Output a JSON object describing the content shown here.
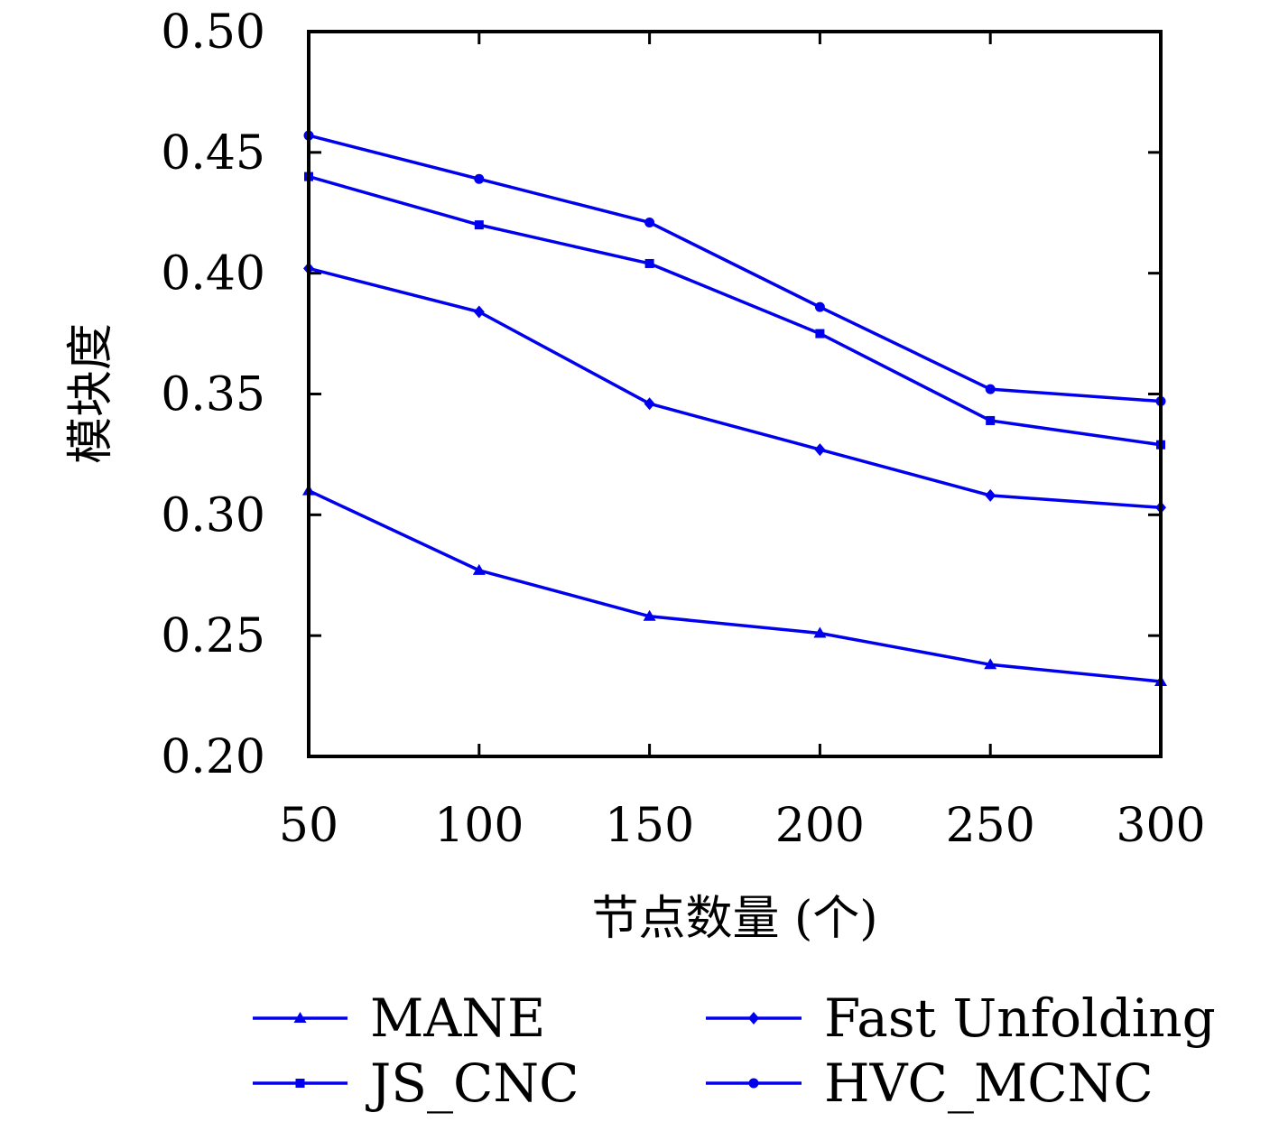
{
  "chart_data": {
    "type": "line",
    "title": "",
    "xlabel": "节点数量 (个)",
    "ylabel": "模块度",
    "x": [
      50,
      100,
      150,
      200,
      250,
      300
    ],
    "x_ticks": [
      "50",
      "100",
      "150",
      "200",
      "250",
      "300"
    ],
    "y_ticks": [
      "0.20",
      "0.25",
      "0.30",
      "0.35",
      "0.40",
      "0.45",
      "0.50"
    ],
    "xlim": [
      50,
      300
    ],
    "ylim": [
      0.2,
      0.5
    ],
    "grid": false,
    "legend_position": "bottom",
    "line_color": "#0000ee",
    "series": [
      {
        "name": "MANE",
        "marker": "triangle",
        "values": [
          0.31,
          0.277,
          0.258,
          0.251,
          0.238,
          0.231
        ]
      },
      {
        "name": "Fast Unfolding",
        "marker": "diamond",
        "values": [
          0.402,
          0.384,
          0.346,
          0.327,
          0.308,
          0.303
        ]
      },
      {
        "name": "JS_CNC",
        "marker": "square",
        "values": [
          0.44,
          0.42,
          0.404,
          0.375,
          0.339,
          0.329
        ]
      },
      {
        "name": "HVC_MCNC",
        "marker": "circle",
        "values": [
          0.457,
          0.439,
          0.421,
          0.386,
          0.352,
          0.347
        ]
      }
    ]
  }
}
